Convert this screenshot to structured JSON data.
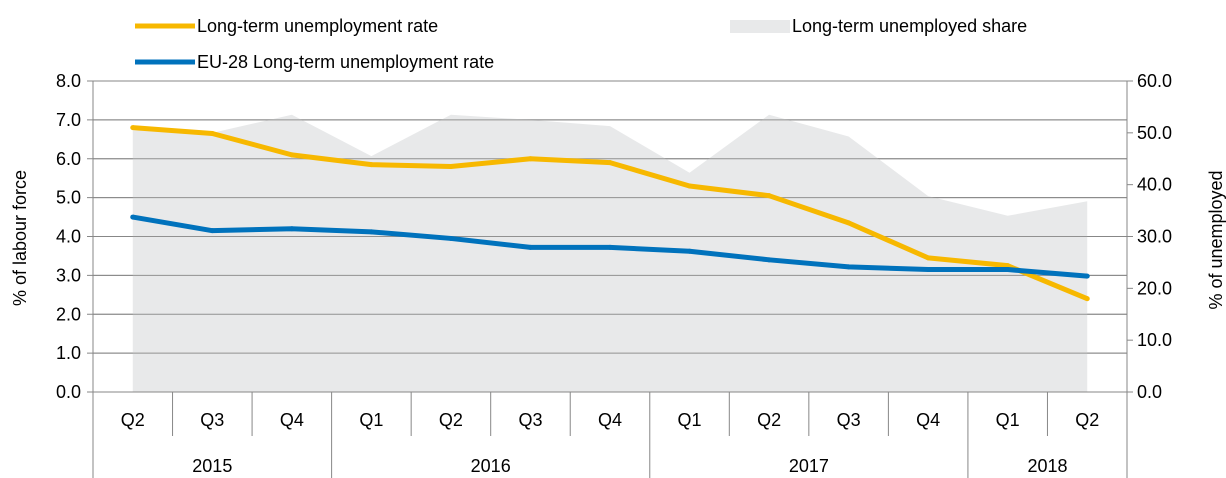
{
  "chart_data": {
    "type": "line",
    "categories": [
      "Q2",
      "Q3",
      "Q4",
      "Q1",
      "Q2",
      "Q3",
      "Q4",
      "Q1",
      "Q2",
      "Q3",
      "Q4",
      "Q1",
      "Q2"
    ],
    "years": [
      {
        "label": "2015",
        "span": 3
      },
      {
        "label": "2016",
        "span": 4
      },
      {
        "label": "2017",
        "span": 4
      },
      {
        "label": "2018",
        "span": 2
      }
    ],
    "series": [
      {
        "name": "Long-term unemployment rate",
        "type": "line",
        "axis": "left",
        "color": "#F7B800",
        "values": [
          6.8,
          6.65,
          6.1,
          5.85,
          5.8,
          6.0,
          5.9,
          5.3,
          5.05,
          4.35,
          3.45,
          3.25,
          2.4
        ]
      },
      {
        "name": "EU-28 Long-term unemployment rate",
        "type": "line",
        "axis": "left",
        "color": "#0072BC",
        "values": [
          4.5,
          4.15,
          4.2,
          4.12,
          3.95,
          3.72,
          3.72,
          3.62,
          3.4,
          3.22,
          3.15,
          3.15,
          2.98
        ]
      },
      {
        "name": "Long-term unemployed share",
        "type": "area",
        "axis": "right",
        "color": "#E8E9EA",
        "values": [
          50.5,
          50.0,
          53.5,
          45.5,
          53.5,
          52.5,
          51.3,
          42.3,
          53.5,
          49.3,
          37.8,
          34.0,
          36.8
        ]
      }
    ],
    "y_left": {
      "label": "% of labour force",
      "min": 0,
      "max": 8,
      "ticks": [
        "0.0",
        "1.0",
        "2.0",
        "3.0",
        "4.0",
        "5.0",
        "6.0",
        "7.0",
        "8.0"
      ]
    },
    "y_right": {
      "label": "% of unemployed",
      "min": 0,
      "max": 60,
      "ticks": [
        "0.0",
        "10.0",
        "20.0",
        "30.0",
        "40.0",
        "50.0",
        "60.0"
      ]
    },
    "grid": true,
    "legend": "top"
  }
}
